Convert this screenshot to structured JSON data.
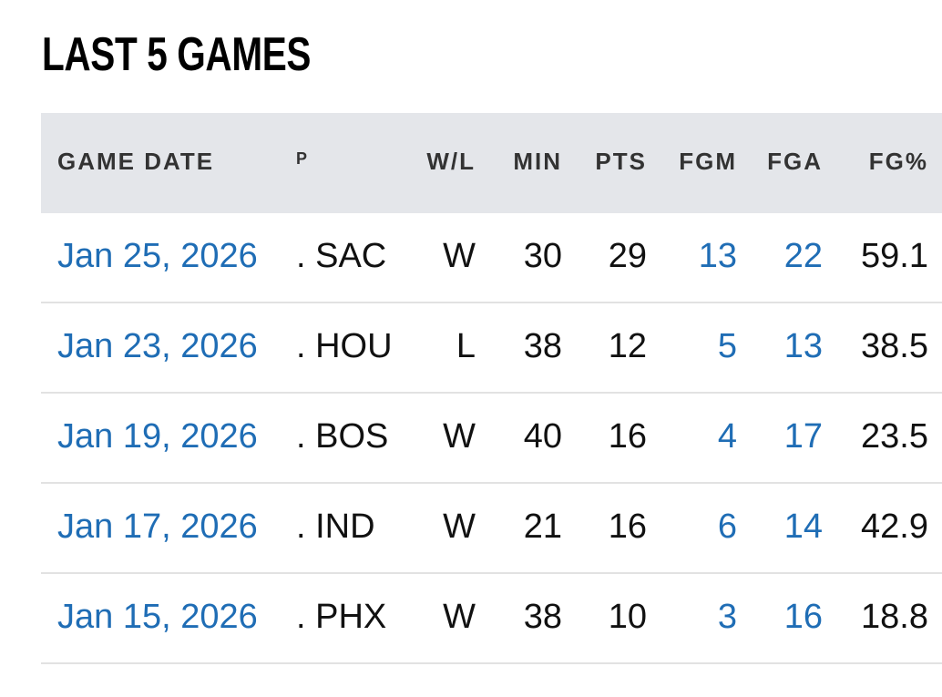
{
  "title": "LAST 5 GAMES",
  "table": {
    "header": [
      "GAME DATE",
      "P",
      "W/L",
      "MIN",
      "PTS",
      "FGM",
      "FGA",
      "FG%"
    ],
    "rows": [
      [
        "Jan 25, 2026",
        ". SAC",
        "W",
        "30",
        "29",
        "13",
        "22",
        "59.1"
      ],
      [
        "Jan 23, 2026",
        ". HOU",
        "L",
        "38",
        "12",
        "5",
        "13",
        "38.5"
      ],
      [
        "Jan 19, 2026",
        ". BOS",
        "W",
        "40",
        "16",
        "4",
        "17",
        "23.5"
      ],
      [
        "Jan 17, 2026",
        ". IND",
        "W",
        "21",
        "16",
        "6",
        "14",
        "42.9"
      ],
      [
        "Jan 15, 2026",
        ". PHX",
        "W",
        "38",
        "10",
        "3",
        "16",
        "18.8"
      ]
    ]
  }
}
